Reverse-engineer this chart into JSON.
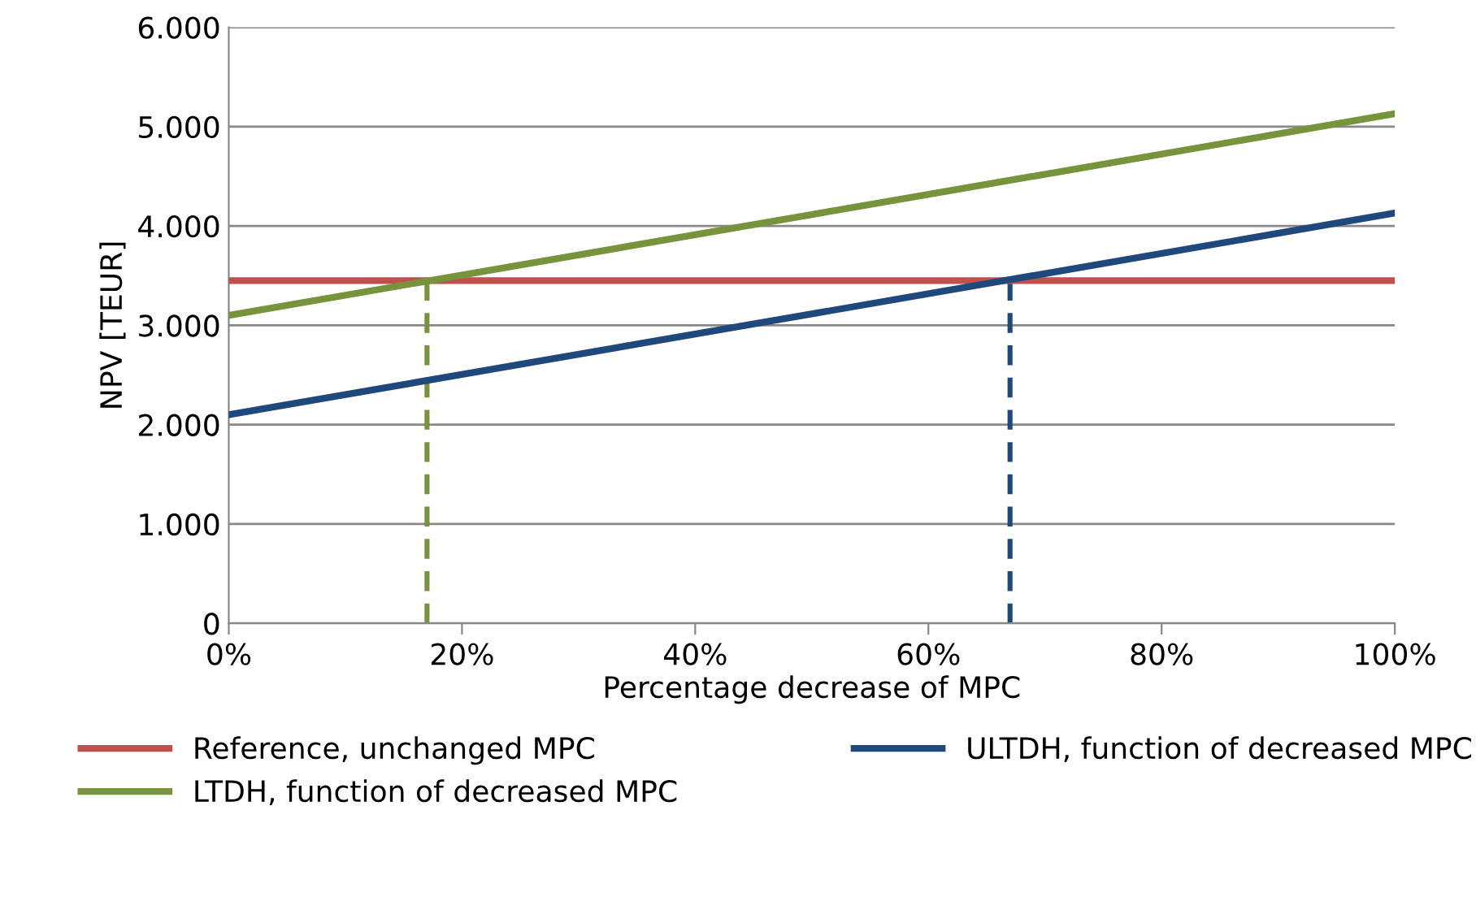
{
  "chart_data": {
    "type": "line",
    "xlabel": "Percentage decrease of MPC",
    "ylabel": "NPV [TEUR]",
    "xlim": [
      0,
      100
    ],
    "ylim": [
      0,
      6000
    ],
    "xticks": [
      {
        "value": 0,
        "label": "0%"
      },
      {
        "value": 20,
        "label": "20%"
      },
      {
        "value": 40,
        "label": "40%"
      },
      {
        "value": 60,
        "label": "60%"
      },
      {
        "value": 80,
        "label": "80%"
      },
      {
        "value": 100,
        "label": "100%"
      }
    ],
    "yticks": [
      0,
      {
        "value": 1000,
        "label": "1.000"
      },
      {
        "value": 2000,
        "label": "2.000"
      },
      {
        "value": 3000,
        "label": "3.000"
      },
      {
        "value": 4000,
        "label": "4.000"
      },
      {
        "value": 5000,
        "label": "5.000"
      },
      {
        "value": 6000,
        "label": "6.000"
      }
    ],
    "grid": "y",
    "legend": "bottom",
    "marker": "none",
    "series": [
      {
        "name": "Reference, unchanged MPC",
        "color": "#c0504d",
        "x": [
          0,
          100
        ],
        "values": [
          3450,
          3450
        ]
      },
      {
        "name": "LTDH, function of decreased MPC",
        "color": "#77933c",
        "x": [
          0,
          100
        ],
        "values": [
          3100,
          5130
        ]
      },
      {
        "name": "ULTDH, function of decreased MPC",
        "color": "#1f497d",
        "x": [
          0,
          100
        ],
        "values": [
          2100,
          4130
        ]
      },
      {
        "color": "#77933c",
        "x": [
          17,
          17
        ],
        "values": [
          0,
          3450
        ],
        "line_style": "dashed"
      },
      {
        "color": "#1f497d",
        "x": [
          67,
          67
        ],
        "values": [
          0,
          3450
        ],
        "line_style": "dashed"
      }
    ]
  }
}
